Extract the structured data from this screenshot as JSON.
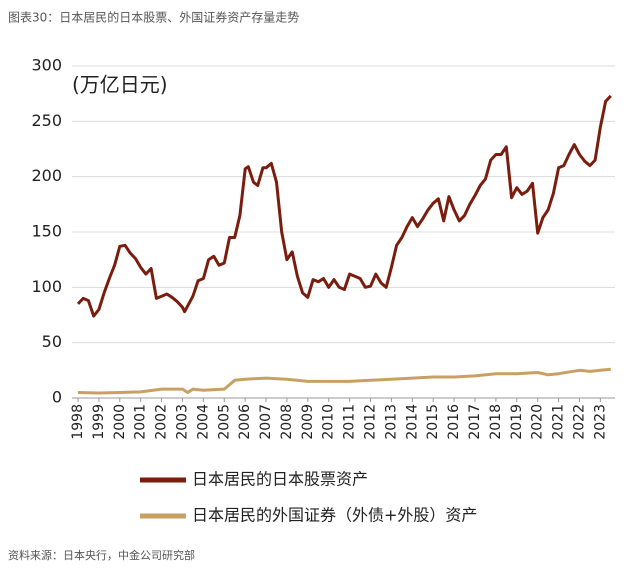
{
  "chart_data": {
    "type": "line",
    "title": "图表30：日本居民的日本股票、外国证券资产存量走势",
    "unit_label": "(万亿日元)",
    "source": "资料来源：日本央行，中金公司研究部",
    "xlim": [
      1998,
      2023.7
    ],
    "xticks": [
      1998,
      1999,
      2000,
      2001,
      2002,
      2003,
      2004,
      2005,
      2006,
      2007,
      2008,
      2009,
      2010,
      2011,
      2012,
      2013,
      2014,
      2015,
      2016,
      2017,
      2018,
      2019,
      2020,
      2021,
      2022,
      2023
    ],
    "ylim": [
      0,
      300
    ],
    "yticks": [
      0,
      50,
      100,
      150,
      200,
      250,
      300
    ],
    "grid": true,
    "series": [
      {
        "name": "日本居民的日本股票资产",
        "color": "#7a1d0e",
        "x": [
          1998,
          1998.25,
          1998.5,
          1998.75,
          1999,
          1999.25,
          1999.5,
          1999.75,
          2000,
          2000.25,
          2000.5,
          2000.75,
          2001,
          2001.25,
          2001.5,
          2001.75,
          2002,
          2002.25,
          2002.5,
          2002.75,
          2003,
          2003.1,
          2003.5,
          2003.75,
          2004,
          2004.25,
          2004.5,
          2004.75,
          2005,
          2005.25,
          2005.5,
          2005.75,
          2006,
          2006.15,
          2006.4,
          2006.6,
          2006.85,
          2007,
          2007.25,
          2007.5,
          2007.75,
          2008,
          2008.25,
          2008.5,
          2008.75,
          2009,
          2009.25,
          2009.5,
          2009.75,
          2010,
          2010.25,
          2010.5,
          2010.75,
          2011,
          2011.25,
          2011.5,
          2011.75,
          2012,
          2012.25,
          2012.5,
          2012.75,
          2013,
          2013.25,
          2013.5,
          2013.75,
          2014,
          2014.25,
          2014.5,
          2014.75,
          2015,
          2015.25,
          2015.5,
          2015.75,
          2016,
          2016.25,
          2016.5,
          2016.75,
          2017,
          2017.25,
          2017.5,
          2017.75,
          2018,
          2018.25,
          2018.5,
          2018.75,
          2019,
          2019.25,
          2019.5,
          2019.75,
          2020,
          2020.25,
          2020.5,
          2020.75,
          2021,
          2021.25,
          2021.5,
          2021.75,
          2022,
          2022.25,
          2022.5,
          2022.75,
          2023,
          2023.25,
          2023.5
        ],
        "values": [
          85,
          90,
          88,
          74,
          80,
          95,
          108,
          120,
          137,
          138,
          131,
          126,
          118,
          112,
          117,
          90,
          92,
          94,
          91,
          87,
          82,
          78,
          92,
          106,
          108,
          125,
          128,
          120,
          122,
          145,
          145,
          165,
          207,
          209,
          195,
          192,
          208,
          208,
          212,
          195,
          150,
          125,
          132,
          110,
          95,
          91,
          107,
          105,
          108,
          100,
          107,
          100,
          98,
          112,
          110,
          108,
          100,
          101,
          112,
          104,
          100,
          118,
          138,
          145,
          155,
          163,
          155,
          162,
          170,
          176,
          180,
          160,
          182,
          170,
          160,
          165,
          175,
          183,
          192,
          198,
          215,
          220,
          220,
          227,
          181,
          190,
          184,
          187,
          194,
          149,
          163,
          170,
          185,
          208,
          210,
          220,
          229,
          220,
          214,
          210,
          215,
          245,
          268,
          273
        ]
      },
      {
        "name": "日本居民的外国证券（外债+外股）资产",
        "color": "#c9a063",
        "x": [
          1998,
          1999,
          2000,
          2001,
          2002,
          2003,
          2003.25,
          2003.5,
          2004,
          2005,
          2005.5,
          2006,
          2007,
          2008,
          2009,
          2010,
          2011,
          2012,
          2013,
          2014,
          2015,
          2016,
          2017,
          2018,
          2019,
          2020,
          2020.5,
          2021,
          2022,
          2022.5,
          2023,
          2023.5
        ],
        "values": [
          5,
          4.5,
          5,
          5.5,
          8,
          8,
          5,
          8,
          7,
          8,
          16,
          17,
          18,
          17,
          15,
          15,
          15,
          16,
          17,
          18,
          19,
          19,
          20,
          22,
          22,
          23,
          21,
          22,
          25,
          24,
          25,
          26
        ]
      }
    ]
  }
}
